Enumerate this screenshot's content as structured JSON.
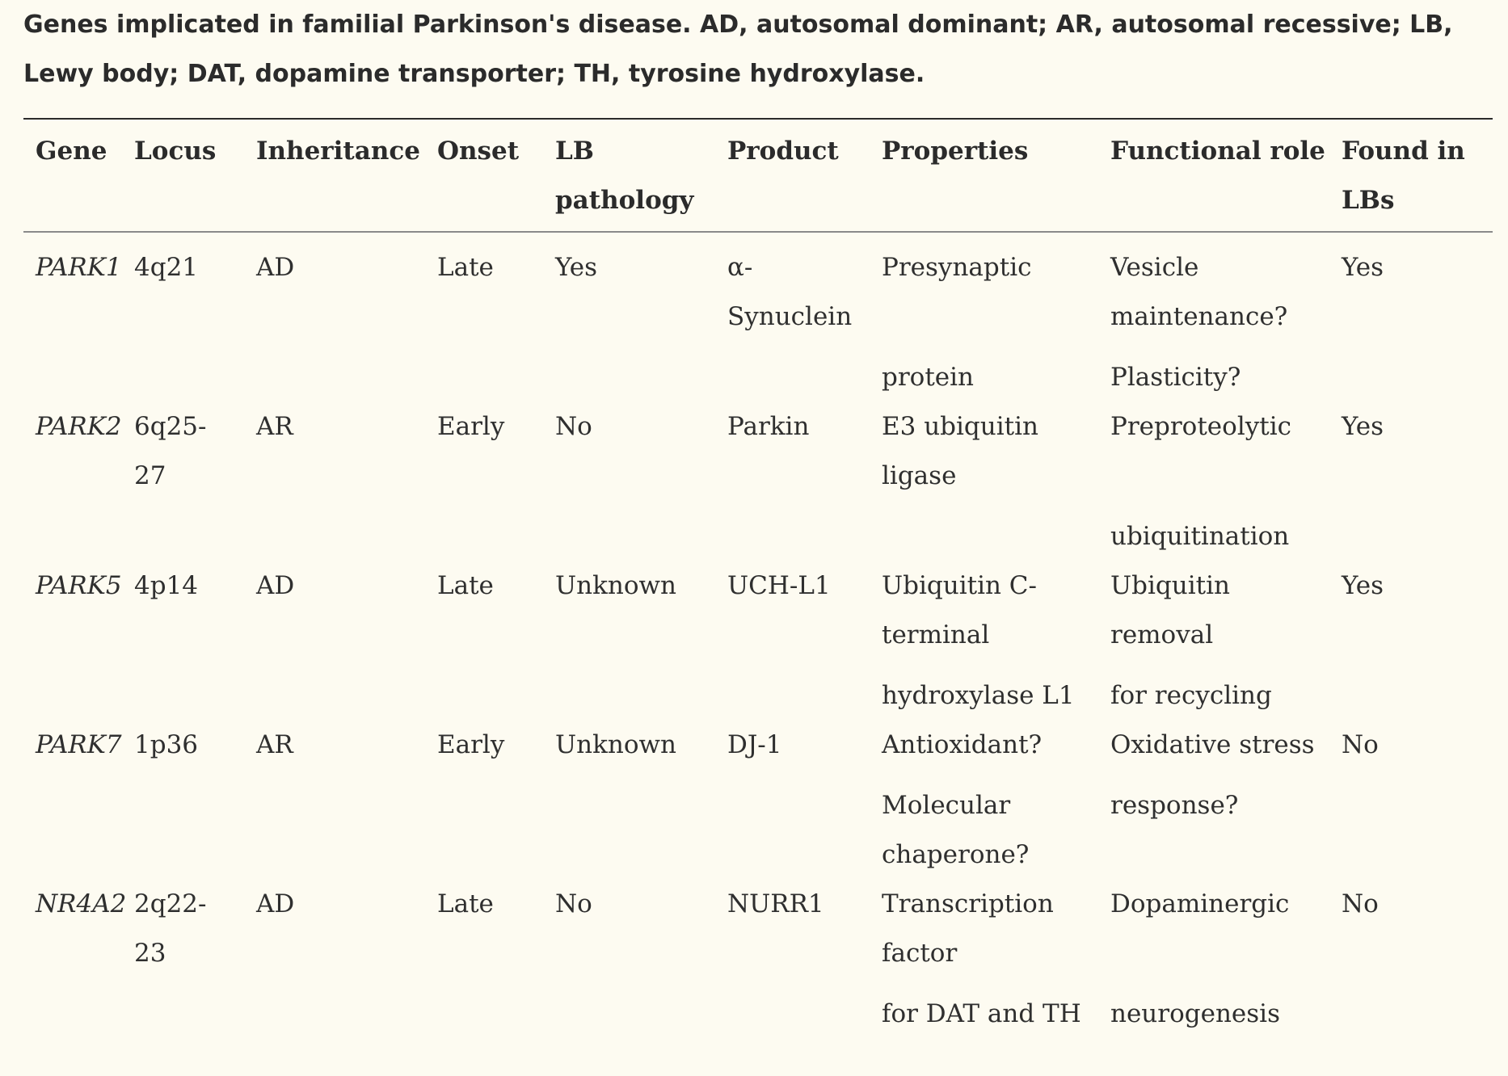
{
  "caption": {
    "line1": "Genes implicated in familial Parkinson's disease. AD, autosomal dominant; AR, autosomal recessive; LB,",
    "line2": "Lewy body; DAT, dopamine transporter; TH, tyrosine hydroxylase."
  },
  "table": {
    "headers": {
      "gene": "Gene",
      "locus": "Locus",
      "inheritance": "Inheritance",
      "onset": "Onset",
      "lb_pathology_1": "LB",
      "lb_pathology_2": "pathology",
      "product": "Product",
      "properties": "Properties",
      "functional_role": "Functional role",
      "found_in_lbs_1": "Found in",
      "found_in_lbs_2": "LBs"
    },
    "rows": [
      {
        "gene": "PARK1",
        "locus_1": "4q21",
        "locus_2": "",
        "inheritance": "AD",
        "onset": "Late",
        "lb_pathology": "Yes",
        "product_1": "α-",
        "product_2": "Synuclein",
        "properties_1": "Presynaptic",
        "properties_2": "",
        "properties_3": "protein",
        "role_1": "Vesicle",
        "role_2": "maintenance?",
        "role_3": "Plasticity?",
        "found_in_lbs": "Yes"
      },
      {
        "gene": "PARK2",
        "locus_1": "6q25-",
        "locus_2": "27",
        "inheritance": "AR",
        "onset": "Early",
        "lb_pathology": "No",
        "product_1": "Parkin",
        "product_2": "",
        "properties_1": "E3 ubiquitin",
        "properties_2": "ligase",
        "properties_3": "",
        "role_1": "Preproteolytic",
        "role_2": "",
        "role_3": "ubiquitination",
        "found_in_lbs": "Yes"
      },
      {
        "gene": "PARK5",
        "locus_1": "4p14",
        "locus_2": "",
        "inheritance": "AD",
        "onset": "Late",
        "lb_pathology": "Unknown",
        "product_1": "UCH-L1",
        "product_2": "",
        "properties_1": "Ubiquitin C-",
        "properties_2": "terminal",
        "properties_3": "hydroxylase L1",
        "role_1": "Ubiquitin",
        "role_2": "removal",
        "role_3": "for recycling",
        "found_in_lbs": "Yes"
      },
      {
        "gene": "PARK7",
        "locus_1": "1p36",
        "locus_2": "",
        "inheritance": "AR",
        "onset": "Early",
        "lb_pathology": "Unknown",
        "product_1": "DJ-1",
        "product_2": "",
        "properties_1": "Antioxidant?",
        "properties_2": "Molecular",
        "properties_3": "chaperone?",
        "role_1": "Oxidative stress",
        "role_2": "response?",
        "role_3": "",
        "found_in_lbs": "No"
      },
      {
        "gene": "NR4A2",
        "locus_1": "2q22-",
        "locus_2": "23",
        "inheritance": "AD",
        "onset": "Late",
        "lb_pathology": "No",
        "product_1": "NURR1",
        "product_2": "",
        "properties_1": "Transcription",
        "properties_2": "factor",
        "properties_3": "for DAT and TH",
        "role_1": "Dopaminergic",
        "role_2": "",
        "role_3": "neurogenesis",
        "found_in_lbs": "No"
      }
    ]
  }
}
